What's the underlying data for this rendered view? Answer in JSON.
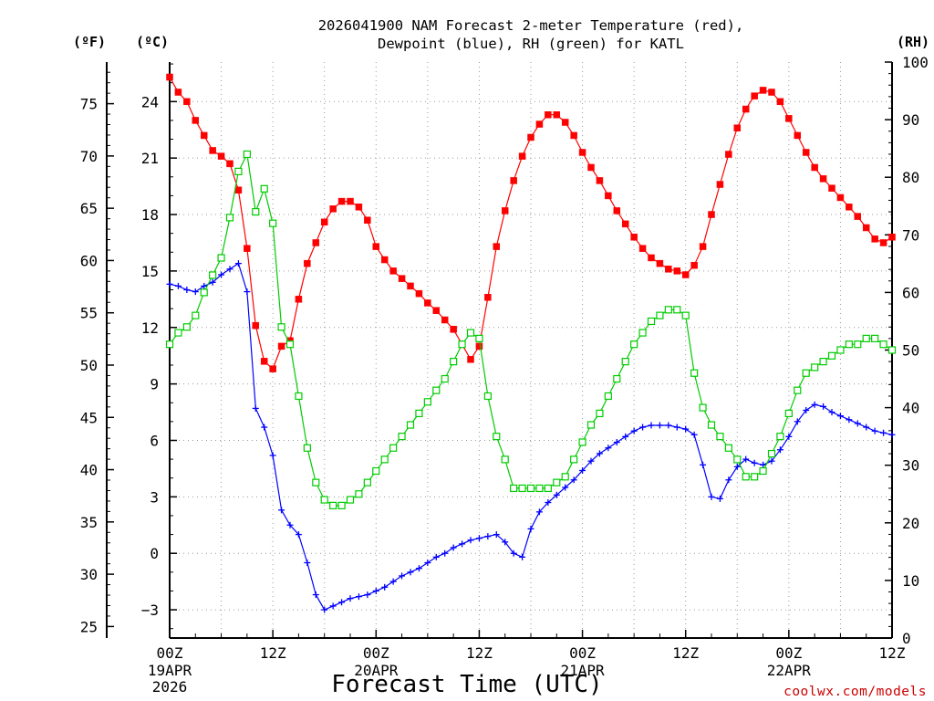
{
  "colors": {
    "temperature": "#ff0000",
    "dewpoint": "#0000ff",
    "rh": "#00cc00",
    "axis": "#000000",
    "grid": "#999999",
    "credit": "#cc0000"
  },
  "chart_data": {
    "type": "line",
    "title": [
      "2026041900 NAM Forecast 2-meter Temperature (red),",
      "Dewpoint (blue), RH (green) for KATL"
    ],
    "xlabel": "Forecast Time (UTC)",
    "credit": "coolwx.com/models",
    "left_unit_f": "(ºF)",
    "left_unit_c": "(ºC)",
    "right_unit": "(RH)",
    "x_range_hours": [
      0,
      84
    ],
    "x_ticks": [
      {
        "hour": 0,
        "label": "00Z",
        "date": "19APR",
        "year": "2026"
      },
      {
        "hour": 12,
        "label": "12Z",
        "date": "",
        "year": ""
      },
      {
        "hour": 24,
        "label": "00Z",
        "date": "20APR",
        "year": ""
      },
      {
        "hour": 36,
        "label": "12Z",
        "date": "",
        "year": ""
      },
      {
        "hour": 48,
        "label": "00Z",
        "date": "21APR",
        "year": ""
      },
      {
        "hour": 60,
        "label": "12Z",
        "date": "",
        "year": ""
      },
      {
        "hour": 72,
        "label": "00Z",
        "date": "22APR",
        "year": ""
      },
      {
        "hour": 84,
        "label": "12Z",
        "date": "",
        "year": ""
      }
    ],
    "ylim_c": [
      -4.5,
      26.1
    ],
    "y_ticks_c": [
      -3,
      0,
      3,
      6,
      9,
      12,
      15,
      18,
      21,
      24
    ],
    "y_ticks_f": [
      25,
      30,
      35,
      40,
      45,
      50,
      55,
      60,
      65,
      70,
      75
    ],
    "ylim_rh": [
      0,
      100
    ],
    "y_ticks_rh": [
      0,
      10,
      20,
      30,
      40,
      50,
      60,
      70,
      80,
      90,
      100
    ],
    "series": [
      {
        "name": "Temperature",
        "units": "C",
        "color": "temperature",
        "marker": "filled-square",
        "values": [
          25.3,
          24.5,
          24.0,
          23.0,
          22.2,
          21.4,
          21.1,
          20.7,
          19.3,
          16.2,
          12.1,
          10.2,
          9.8,
          11.0,
          11.3,
          13.5,
          15.4,
          16.5,
          17.6,
          18.3,
          18.7,
          18.7,
          18.4,
          17.7,
          16.3,
          15.6,
          15.0,
          14.6,
          14.2,
          13.8,
          13.3,
          12.9,
          12.4,
          11.9,
          11.1,
          10.3,
          11.0,
          13.6,
          16.3,
          18.2,
          19.8,
          21.1,
          22.1,
          22.8,
          23.3,
          23.3,
          22.9,
          22.2,
          21.3,
          20.5,
          19.8,
          19.0,
          18.2,
          17.5,
          16.8,
          16.2,
          15.7,
          15.4,
          15.1,
          15.0,
          14.8,
          15.3,
          16.3,
          18.0,
          19.6,
          21.2,
          22.6,
          23.6,
          24.3,
          24.6,
          24.5,
          24.0,
          23.1,
          22.2,
          21.3,
          20.5,
          19.9,
          19.4,
          18.9,
          18.4,
          17.9,
          17.3,
          16.7,
          16.5,
          16.8
        ]
      },
      {
        "name": "Dewpoint",
        "units": "C",
        "color": "dewpoint",
        "marker": "plus",
        "values": [
          14.3,
          14.2,
          14.0,
          13.9,
          14.2,
          14.4,
          14.8,
          15.1,
          15.4,
          13.9,
          7.7,
          6.7,
          5.2,
          2.3,
          1.5,
          1.0,
          -0.5,
          -2.2,
          -3.0,
          -2.8,
          -2.6,
          -2.4,
          -2.3,
          -2.2,
          -2.0,
          -1.8,
          -1.5,
          -1.2,
          -1.0,
          -0.8,
          -0.5,
          -0.2,
          0.0,
          0.3,
          0.5,
          0.7,
          0.8,
          0.9,
          1.0,
          0.6,
          0.0,
          -0.2,
          1.3,
          2.2,
          2.7,
          3.1,
          3.5,
          3.9,
          4.4,
          4.9,
          5.3,
          5.6,
          5.9,
          6.2,
          6.5,
          6.7,
          6.8,
          6.8,
          6.8,
          6.7,
          6.6,
          6.3,
          4.7,
          3.0,
          2.9,
          3.9,
          4.6,
          5.0,
          4.8,
          4.7,
          4.9,
          5.5,
          6.2,
          7.0,
          7.6,
          7.9,
          7.8,
          7.5,
          7.3,
          7.1,
          6.9,
          6.7,
          6.5,
          6.4,
          6.3
        ]
      },
      {
        "name": "RH",
        "units": "%",
        "color": "rh",
        "marker": "open-square",
        "values": [
          51,
          53,
          54,
          56,
          60,
          63,
          66,
          73,
          81,
          84,
          74,
          78,
          72,
          54,
          51,
          42,
          33,
          27,
          24,
          23,
          23,
          24,
          25,
          27,
          29,
          31,
          33,
          35,
          37,
          39,
          41,
          43,
          45,
          48,
          51,
          53,
          52,
          42,
          35,
          31,
          26,
          26,
          26,
          26,
          26,
          27,
          28,
          31,
          34,
          37,
          39,
          42,
          45,
          48,
          51,
          53,
          55,
          56,
          57,
          57,
          56,
          46,
          40,
          37,
          35,
          33,
          31,
          28,
          28,
          29,
          32,
          35,
          39,
          43,
          46,
          47,
          48,
          49,
          50,
          51,
          51,
          52,
          52,
          51,
          50
        ]
      }
    ]
  }
}
